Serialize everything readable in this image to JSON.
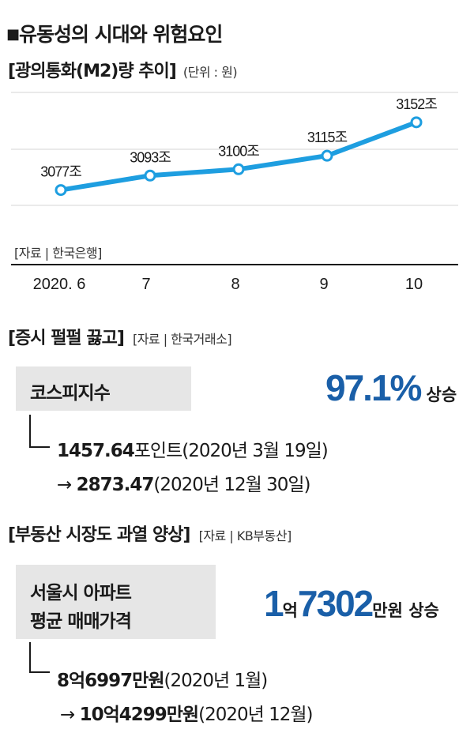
{
  "header": {
    "bullet": "■",
    "title": "유동성의 시대와 위험요인"
  },
  "chart_data": {
    "type": "line",
    "title": "[광의통화(M2)량 추이]",
    "unit_note": "(단위 : 원)",
    "x": [
      "2020. 6",
      "7",
      "8",
      "9",
      "10"
    ],
    "values": [
      3077,
      3093,
      3100,
      3115,
      3152
    ],
    "value_labels": [
      "3077조",
      "3093조",
      "3100조",
      "3115조",
      "3152조"
    ],
    "ylim": [
      3060,
      3165
    ],
    "grid": true,
    "line_color": "#1e9ee0",
    "source": "[자료 | 한국은행]"
  },
  "stocks": {
    "heading": "[증시 펄펄 끓고]",
    "source": "[자료 | 한국거래소]",
    "box_label": "코스피지수",
    "rise_value": "97.1%",
    "rise_word": "상승",
    "from_value": "1457.64",
    "from_unit": "포인트",
    "from_date": "(2020년 3월 19일)",
    "arrow": "→",
    "to_value": "2873.47",
    "to_date": "(2020년 12월 30일)"
  },
  "realestate": {
    "heading": "[부동산 시장도 과열 양상]",
    "source": "[자료 | KB부동산]",
    "box_line1": "서울시 아파트",
    "box_line2": "평균 매매가격",
    "rise_num1": "1",
    "rise_unit1": "억",
    "rise_num2": "7302",
    "rise_unit2": "만원 상승",
    "from_value": "8억6997만원",
    "from_date": "(2020년 1월)",
    "arrow": "→",
    "to_value": "10억4299만원",
    "to_date": "(2020년 12월)"
  },
  "colors": {
    "accent_blue": "#1a5fa8",
    "line_blue": "#1e9ee0",
    "box_grey": "#e6e6e6"
  }
}
